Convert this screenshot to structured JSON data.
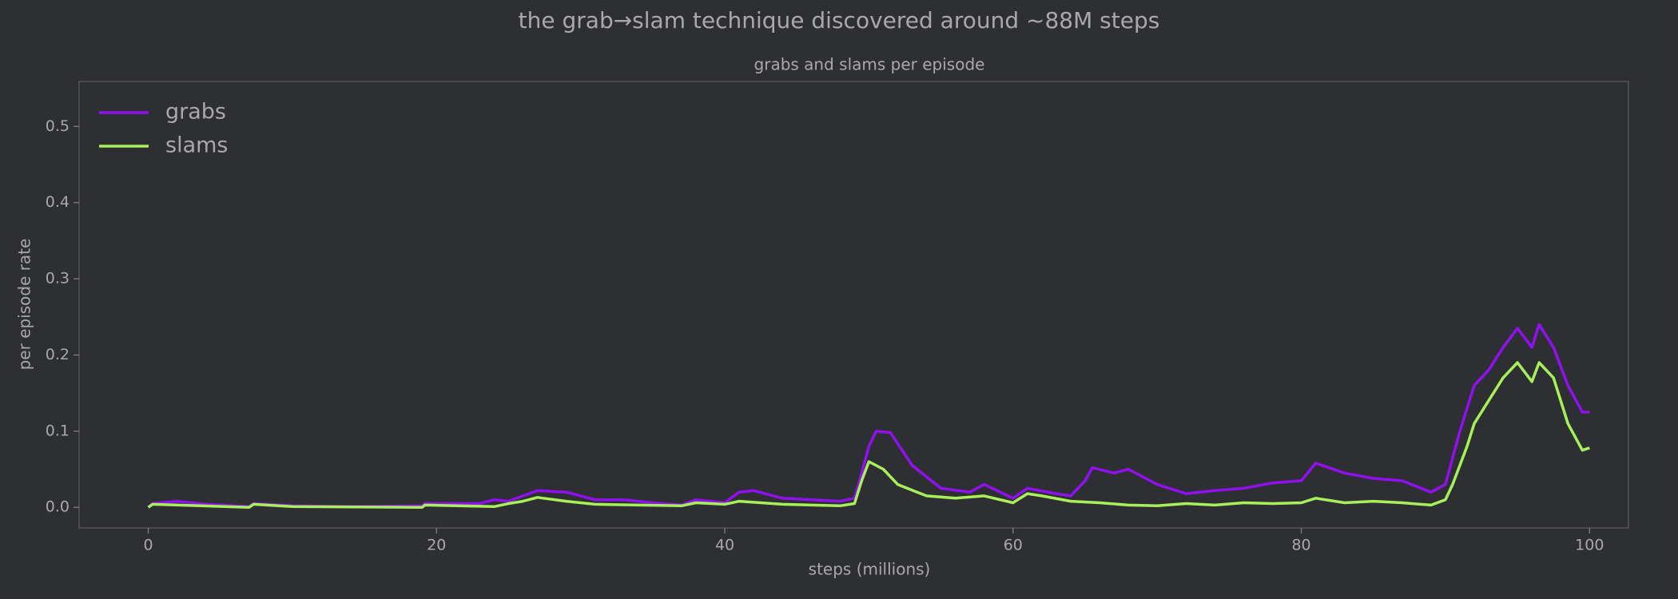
{
  "chart_data": {
    "type": "line",
    "title": "the grab→slam technique discovered around ~88M steps",
    "subtitle": "grabs and slams per episode",
    "x_label": "steps (millions)",
    "y_label": "per episode rate",
    "legend": "upper left",
    "xlim": [
      -4.8,
      102.7
    ],
    "ylim": [
      -0.027,
      0.559
    ],
    "xticks": [
      0,
      20,
      40,
      60,
      80,
      100
    ],
    "yticks": [
      {
        "value": 0,
        "label": "0.0"
      },
      0.1,
      0.2,
      0.3,
      0.4,
      0.5
    ],
    "series": [
      {
        "name": "grabs",
        "color": "#9010f0",
        "x": [
          0,
          0.3,
          2,
          4,
          7,
          7.3,
          10,
          14,
          19,
          19.2,
          21,
          23,
          24,
          25,
          26,
          27,
          29,
          31,
          33,
          35,
          37,
          38,
          40,
          41,
          42,
          44,
          46,
          48,
          49,
          49.5,
          50,
          50.5,
          51.5,
          53,
          55,
          57,
          58,
          60,
          61,
          63,
          64,
          65,
          65.5,
          67,
          68,
          70,
          72,
          74,
          76,
          78,
          80,
          81,
          83,
          85,
          87,
          89,
          90,
          91,
          92,
          93,
          94,
          95,
          96,
          96.5,
          97.5,
          98.5,
          99.5,
          100
        ],
        "values": [
          0,
          0.005,
          0.008,
          0.004,
          0.001,
          0.005,
          0.002,
          0.001,
          0.002,
          0.005,
          0.005,
          0.005,
          0.01,
          0.008,
          0.015,
          0.022,
          0.02,
          0.01,
          0.01,
          0.006,
          0.003,
          0.01,
          0.006,
          0.02,
          0.022,
          0.012,
          0.01,
          0.008,
          0.012,
          0.045,
          0.08,
          0.1,
          0.098,
          0.055,
          0.025,
          0.02,
          0.03,
          0.012,
          0.025,
          0.018,
          0.015,
          0.035,
          0.052,
          0.045,
          0.05,
          0.03,
          0.018,
          0.022,
          0.025,
          0.032,
          0.035,
          0.058,
          0.045,
          0.038,
          0.035,
          0.02,
          0.03,
          0.1,
          0.16,
          0.18,
          0.21,
          0.235,
          0.21,
          0.24,
          0.21,
          0.16,
          0.125,
          0.125
        ]
      },
      {
        "name": "slams",
        "color": "#a8f05a",
        "x": [
          0,
          0.3,
          7,
          7.3,
          10,
          19,
          19.2,
          24,
          25,
          26,
          27,
          29,
          31,
          37,
          38,
          40,
          41,
          44,
          48,
          49,
          49.5,
          50,
          51,
          52,
          54,
          56,
          58,
          60,
          61,
          62,
          64,
          66,
          68,
          70,
          72,
          74,
          76,
          78,
          80,
          81,
          83,
          85,
          87,
          89,
          90,
          90.5,
          91.5,
          92,
          93,
          94,
          95,
          96,
          96.5,
          97.5,
          98.5,
          99.5,
          100
        ],
        "values": [
          0,
          0.004,
          0,
          0.004,
          0.001,
          0,
          0.003,
          0.001,
          0.005,
          0.008,
          0.013,
          0.008,
          0.004,
          0.002,
          0.006,
          0.004,
          0.008,
          0.004,
          0.002,
          0.005,
          0.035,
          0.06,
          0.05,
          0.03,
          0.015,
          0.012,
          0.015,
          0.006,
          0.018,
          0.015,
          0.008,
          0.006,
          0.003,
          0.002,
          0.005,
          0.003,
          0.006,
          0.005,
          0.006,
          0.012,
          0.006,
          0.008,
          0.006,
          0.003,
          0.01,
          0.03,
          0.08,
          0.11,
          0.14,
          0.17,
          0.19,
          0.165,
          0.19,
          0.17,
          0.11,
          0.075,
          0.078
        ]
      }
    ]
  }
}
